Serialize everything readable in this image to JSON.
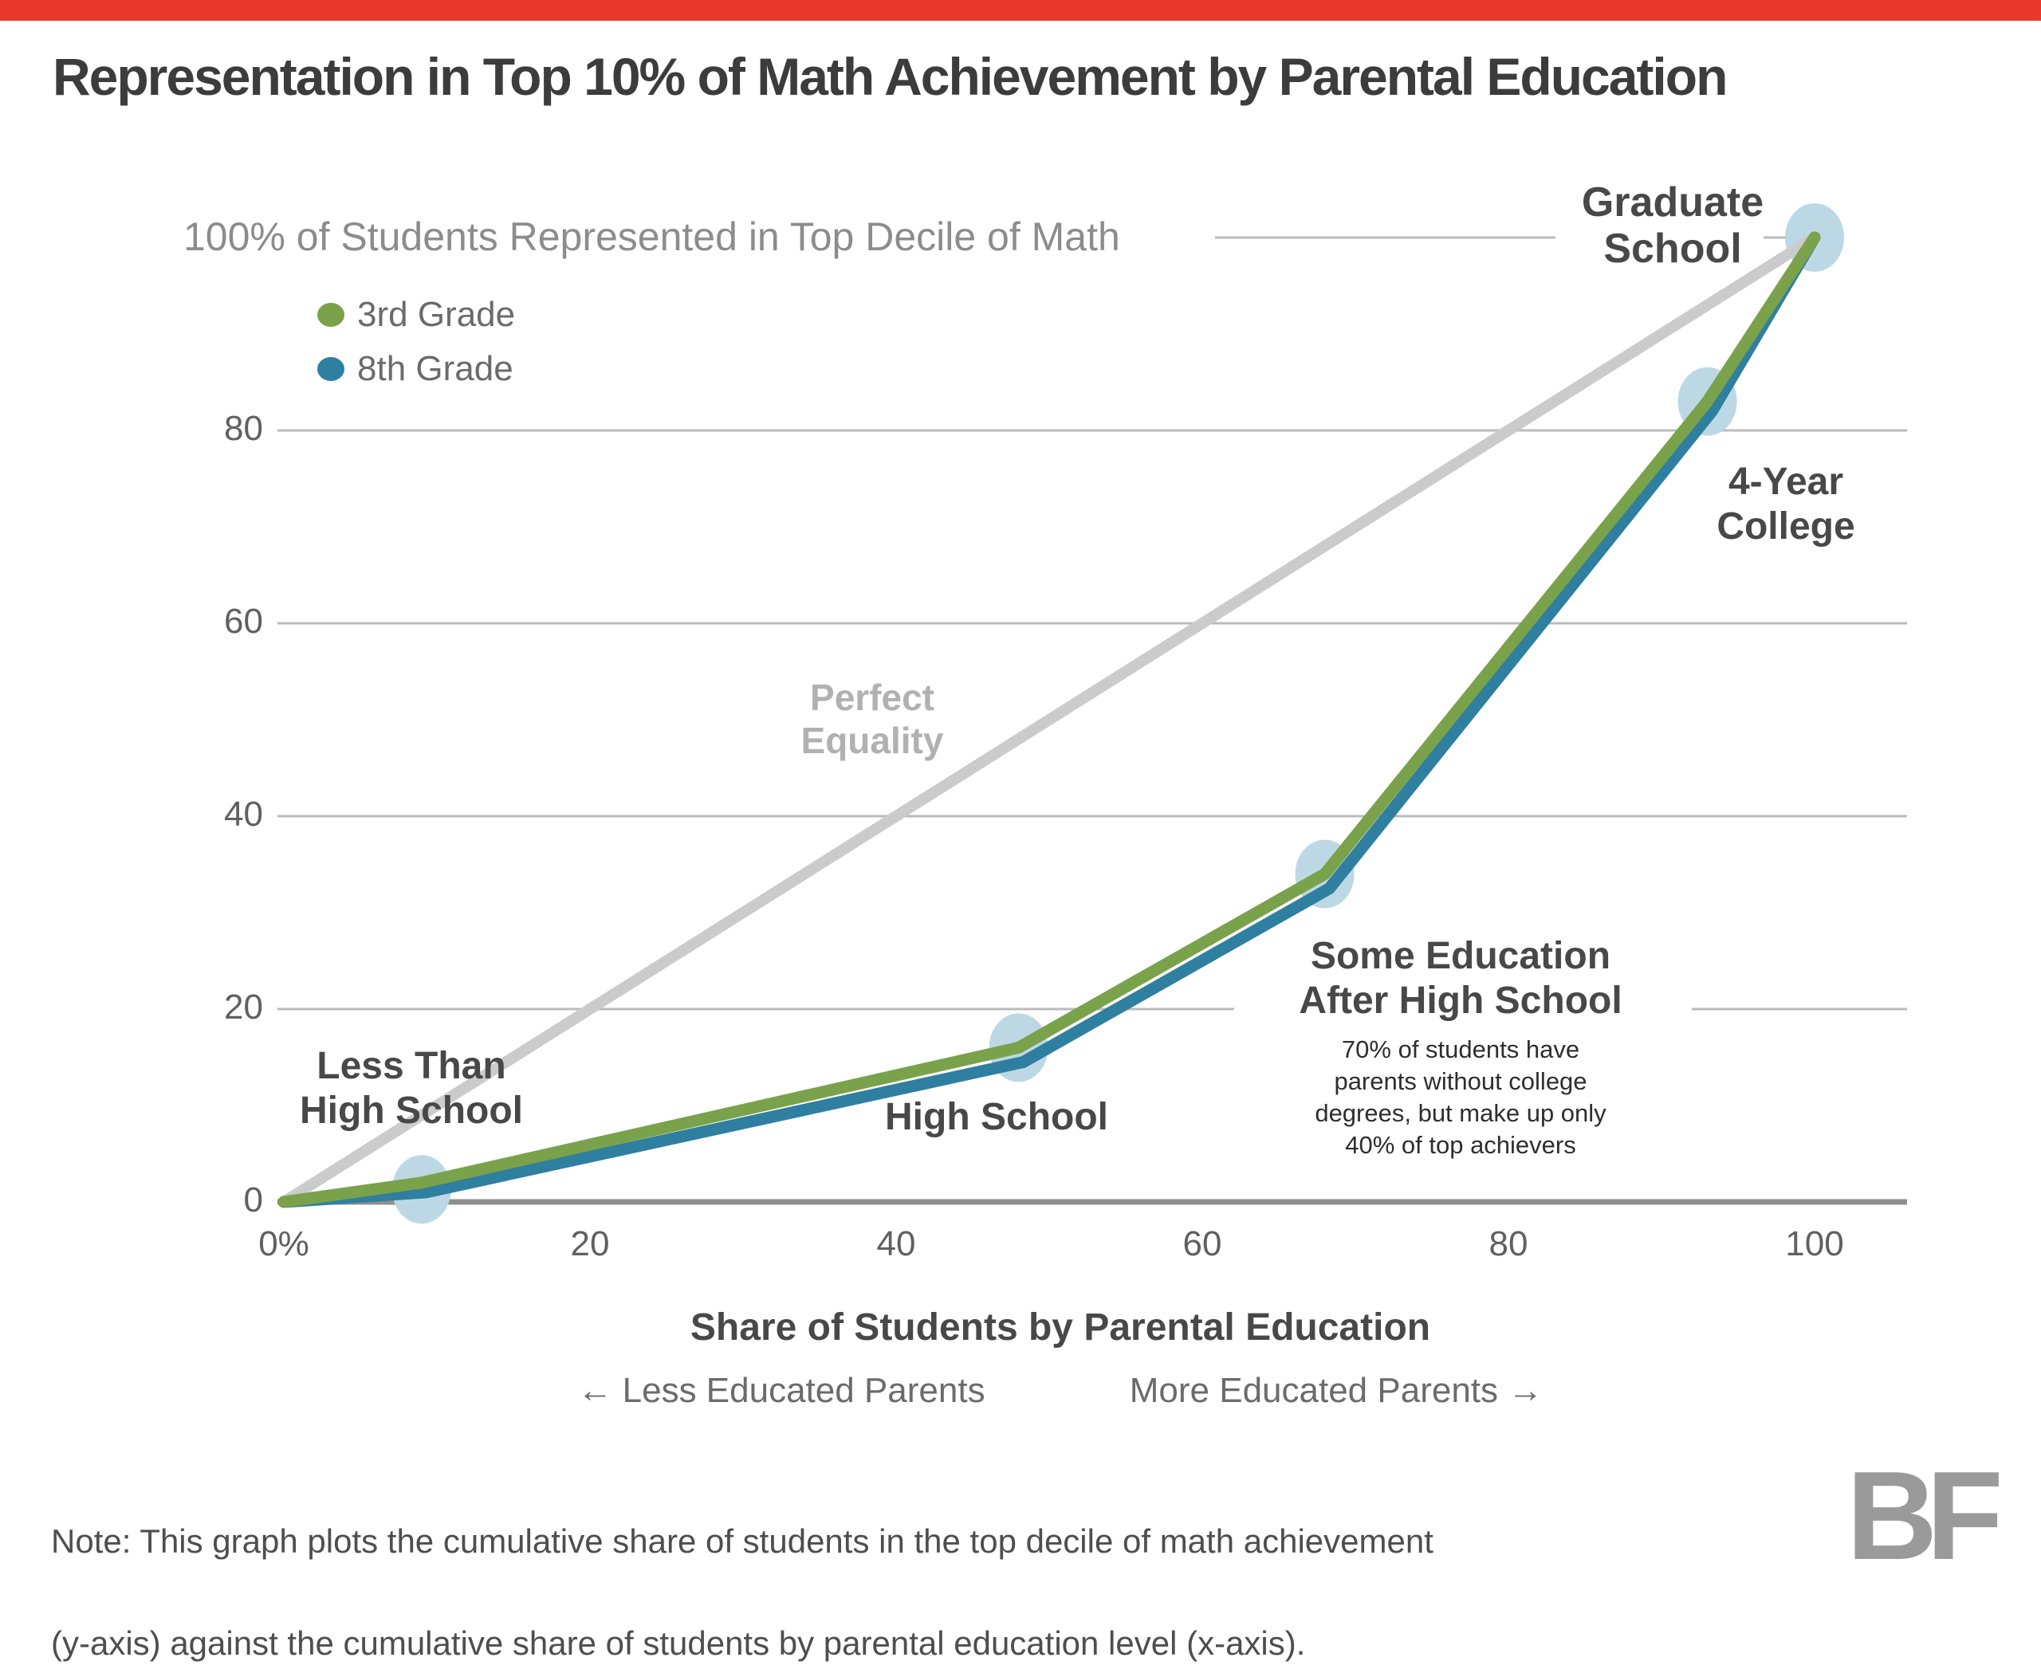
{
  "brand": {
    "top_bar_color": "#E8382C",
    "logo_text": "BF",
    "logo_color": "#9A9A9A"
  },
  "title": "Representation in Top 10% of Math Achievement by Parental Education",
  "note_line1": "Note: This graph plots the cumulative share of students in the top decile of math achievement",
  "note_line2": "(y-axis) against the cumulative share of students by parental education level (x-axis).",
  "chart_data": {
    "type": "line",
    "title": "Representation in Top 10% of Math Achievement by Parental Education",
    "top_axis_label": "100% of Students Represented in Top Decile of Math",
    "xlabel": "Share of Students by Parental Education",
    "direction_left": "← Less Educated Parents",
    "direction_right": "More Educated Parents →",
    "xlim": [
      0,
      100
    ],
    "ylim": [
      0,
      100
    ],
    "grid": "horizontal",
    "x_ticks": [
      {
        "label": "0%",
        "value": 0
      },
      {
        "label": "20",
        "value": 20
      },
      {
        "label": "40",
        "value": 40
      },
      {
        "label": "60",
        "value": 60
      },
      {
        "label": "80",
        "value": 80
      },
      {
        "label": "100",
        "value": 100
      }
    ],
    "y_ticks": [
      {
        "label": "0",
        "value": 0
      },
      {
        "label": "20",
        "value": 20
      },
      {
        "label": "40",
        "value": 40
      },
      {
        "label": "60",
        "value": 60
      },
      {
        "label": "80",
        "value": 80
      }
    ],
    "legend": [
      {
        "label": "3rd Grade",
        "color": "#7AA24A"
      },
      {
        "label": "8th Grade",
        "color": "#2F7FA0"
      }
    ],
    "series": [
      {
        "name": "8th Grade",
        "color": "#2F7FA0",
        "x": [
          0,
          9.3,
          48.3,
          68.3,
          93.3,
          100
        ],
        "y": [
          0,
          1,
          14.5,
          32.5,
          82,
          100
        ]
      },
      {
        "name": "3rd Grade",
        "color": "#7AA24A",
        "x": [
          0,
          9,
          48,
          68,
          93,
          100
        ],
        "y": [
          0,
          2,
          16,
          34,
          83,
          100
        ]
      }
    ],
    "reference_line": {
      "label": "Perfect\nEquality",
      "from": [
        0,
        0
      ],
      "to": [
        100,
        100
      ],
      "color": "#CBCBCB"
    },
    "markers": {
      "color": "#BDD8E5",
      "points": [
        [
          9,
          1.3
        ],
        [
          48,
          16
        ],
        [
          68,
          34
        ],
        [
          93,
          83
        ],
        [
          100,
          100
        ]
      ]
    },
    "point_labels": {
      "less_than_hs": "Less Than\nHigh School",
      "high_school": "High School",
      "some_education": "Some Education\nAfter High School",
      "four_year": "4-Year\nCollege",
      "graduate": "Graduate\nSchool"
    },
    "annotation": "70% of students have\nparents without college\ndegrees, but make up only\n40% of top achievers",
    "colors": {
      "gridline": "#BBBBBB",
      "axis_line": "#8F8F8F",
      "marker_fill": "#BDD8E5"
    }
  }
}
